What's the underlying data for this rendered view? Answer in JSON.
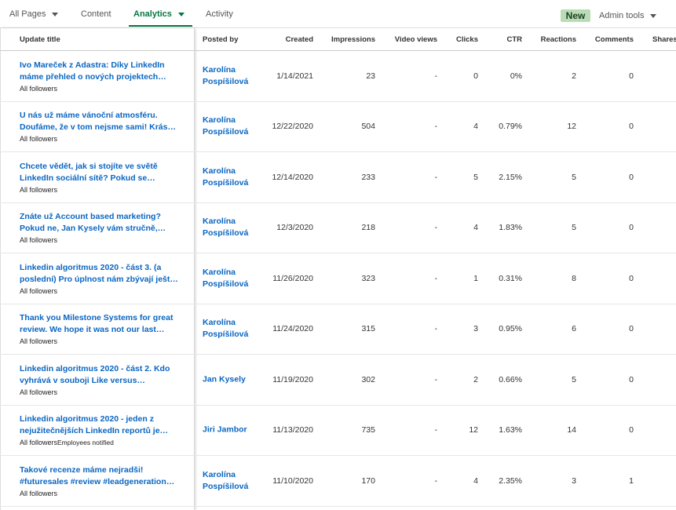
{
  "nav": {
    "tabs": [
      "All Pages",
      "Content",
      "Analytics",
      "Activity"
    ],
    "active_tab": 2,
    "dropdown_tabs": [
      0,
      2
    ],
    "badge": "New",
    "admin_tools": "Admin tools"
  },
  "table": {
    "columns": [
      "Update title",
      "Posted by",
      "Created",
      "Impressions",
      "Video views",
      "Clicks",
      "CTR",
      "Reactions",
      "Comments",
      "Shares"
    ],
    "rows": [
      {
        "title": "Ivo Mareček z Adastra: Díky LinkedIn máme přehled o nových projektech…",
        "audience": "All followers",
        "posted_by": "Karolína Pospíšilová",
        "created": "1/14/2021",
        "impressions": "23",
        "video_views": "-",
        "clicks": "0",
        "ctr": "0%",
        "reactions": "2",
        "comments": "0"
      },
      {
        "title": "U nás už máme vánoční atmosféru. Doufáme, že v tom nejsme sami! Krás…",
        "audience": "All followers",
        "posted_by": "Karolína Pospíšilová",
        "created": "12/22/2020",
        "impressions": "504",
        "video_views": "-",
        "clicks": "4",
        "ctr": "0.79%",
        "reactions": "12",
        "comments": "0"
      },
      {
        "title": "Chcete vědět, jak si stojíte ve světě LinkedIn sociální sítě? Pokud se…",
        "audience": "All followers",
        "posted_by": "Karolína Pospíšilová",
        "created": "12/14/2020",
        "impressions": "233",
        "video_views": "-",
        "clicks": "5",
        "ctr": "2.15%",
        "reactions": "5",
        "comments": "0"
      },
      {
        "title": "Znáte už Account based marketing? Pokud ne, Jan Kysely vám stručně,…",
        "audience": "All followers",
        "posted_by": "Karolína Pospíšilová",
        "created": "12/3/2020",
        "impressions": "218",
        "video_views": "-",
        "clicks": "4",
        "ctr": "1.83%",
        "reactions": "5",
        "comments": "0"
      },
      {
        "title": "Linkedin algoritmus 2020 - část 3. (a poslední) Pro úplnost nám zbývají ješt…",
        "audience": "All followers",
        "posted_by": "Karolína Pospíšilová",
        "created": "11/26/2020",
        "impressions": "323",
        "video_views": "-",
        "clicks": "1",
        "ctr": "0.31%",
        "reactions": "8",
        "comments": "0"
      },
      {
        "title": "Thank you Milestone Systems for great review. We hope it was not our last…",
        "audience": "All followers",
        "posted_by": "Karolína Pospíšilová",
        "created": "11/24/2020",
        "impressions": "315",
        "video_views": "-",
        "clicks": "3",
        "ctr": "0.95%",
        "reactions": "6",
        "comments": "0"
      },
      {
        "title": "Linkedin algoritmus 2020 - část 2. Kdo vyhrává v souboji Like versus…",
        "audience": "All followers",
        "posted_by": "Jan Kysely",
        "created": "11/19/2020",
        "impressions": "302",
        "video_views": "-",
        "clicks": "2",
        "ctr": "0.66%",
        "reactions": "5",
        "comments": "0"
      },
      {
        "title": "Linkedin algoritmus 2020 - jeden z nejužitečnějších LinkedIn reportů je…",
        "audience": "All followers",
        "tag": "Employees notified",
        "posted_by": "Jiri Jambor",
        "created": "11/13/2020",
        "impressions": "735",
        "video_views": "-",
        "clicks": "12",
        "ctr": "1.63%",
        "reactions": "14",
        "comments": "0"
      },
      {
        "title": "Takové recenze máme nejradši! #futuresales #review #leadgeneration…",
        "audience": "All followers",
        "posted_by": "Karolína Pospíšilová",
        "created": "11/10/2020",
        "impressions": "170",
        "video_views": "-",
        "clicks": "4",
        "ctr": "2.35%",
        "reactions": "3",
        "comments": "1"
      }
    ]
  }
}
